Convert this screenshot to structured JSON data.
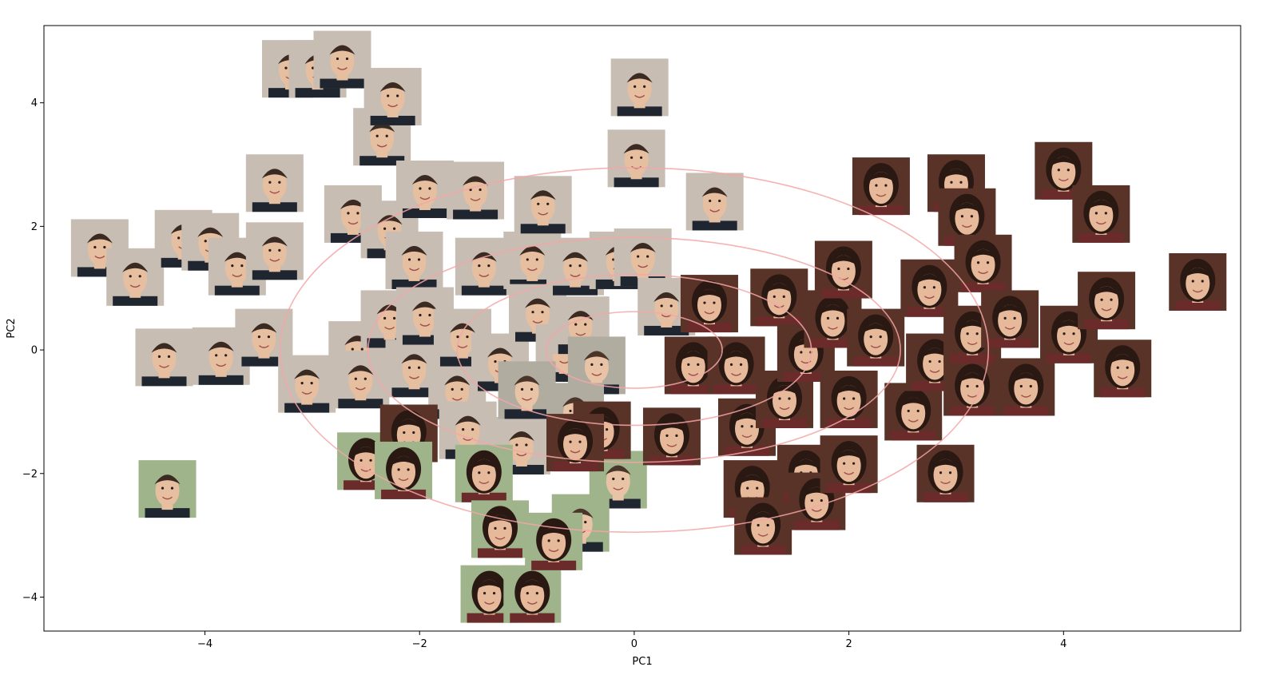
{
  "chart_data": {
    "type": "scatter",
    "title": "",
    "xlabel": "PC1",
    "ylabel": "PC2",
    "xlim": [
      -5.5,
      5.65
    ],
    "ylim": [
      -4.55,
      5.25
    ],
    "x_ticks": [
      -4,
      -2,
      0,
      2,
      4
    ],
    "y_ticks": [
      -4,
      -2,
      0,
      2,
      4
    ],
    "x_tick_labels": [
      "−4",
      "−2",
      "0",
      "2",
      "4"
    ],
    "y_tick_labels": [
      "−4",
      "−2",
      "0",
      "2",
      "4"
    ],
    "grid": false,
    "marker": "face-thumbnail",
    "confidence_ellipses": {
      "center": [
        0,
        0
      ],
      "radii": [
        [
          0.82,
          0.62
        ],
        [
          1.65,
          1.22
        ],
        [
          2.48,
          1.82
        ],
        [
          3.3,
          2.95
        ]
      ],
      "color": "#f4a6a6"
    },
    "points": [
      {
        "x": -4.98,
        "y": 1.65,
        "group": "m"
      },
      {
        "x": -4.65,
        "y": 1.18,
        "group": "m"
      },
      {
        "x": -4.35,
        "y": -2.25,
        "group": "m"
      },
      {
        "x": -4.38,
        "y": -0.12,
        "group": "m"
      },
      {
        "x": -4.2,
        "y": 1.8,
        "group": "m"
      },
      {
        "x": -3.95,
        "y": 1.75,
        "group": "m"
      },
      {
        "x": -3.85,
        "y": -0.1,
        "group": "m"
      },
      {
        "x": -3.7,
        "y": 1.35,
        "group": "m"
      },
      {
        "x": -3.45,
        "y": 0.2,
        "group": "m"
      },
      {
        "x": -3.35,
        "y": 1.6,
        "group": "m"
      },
      {
        "x": -3.35,
        "y": 2.7,
        "group": "m"
      },
      {
        "x": -3.2,
        "y": 4.55,
        "group": "m"
      },
      {
        "x": -3.05,
        "y": -0.55,
        "group": "m"
      },
      {
        "x": -2.95,
        "y": 4.55,
        "group": "m"
      },
      {
        "x": -2.72,
        "y": 4.7,
        "group": "m"
      },
      {
        "x": -2.62,
        "y": 2.2,
        "group": "m"
      },
      {
        "x": -2.58,
        "y": 0.0,
        "group": "m"
      },
      {
        "x": -2.55,
        "y": -0.48,
        "group": "m"
      },
      {
        "x": -2.35,
        "y": 3.45,
        "group": "m"
      },
      {
        "x": -2.28,
        "y": 1.95,
        "group": "m"
      },
      {
        "x": -2.28,
        "y": 0.5,
        "group": "m"
      },
      {
        "x": -2.25,
        "y": 4.1,
        "group": "m"
      },
      {
        "x": -2.05,
        "y": 1.45,
        "group": "m"
      },
      {
        "x": -2.05,
        "y": -0.3,
        "group": "m"
      },
      {
        "x": -1.95,
        "y": 0.55,
        "group": "m"
      },
      {
        "x": -1.95,
        "y": 2.6,
        "group": "m"
      },
      {
        "x": -1.65,
        "y": -0.65,
        "group": "m"
      },
      {
        "x": -1.6,
        "y": 0.2,
        "group": "m"
      },
      {
        "x": -1.55,
        "y": -1.3,
        "group": "m"
      },
      {
        "x": -1.48,
        "y": 2.58,
        "group": "m"
      },
      {
        "x": -1.4,
        "y": 1.35,
        "group": "m"
      },
      {
        "x": -1.25,
        "y": -0.2,
        "group": "m"
      },
      {
        "x": -1.05,
        "y": -1.55,
        "group": "m"
      },
      {
        "x": -0.95,
        "y": 1.45,
        "group": "m"
      },
      {
        "x": -0.9,
        "y": 0.6,
        "group": "m"
      },
      {
        "x": -0.85,
        "y": 2.35,
        "group": "m"
      },
      {
        "x": -0.65,
        "y": -0.05,
        "group": "m"
      },
      {
        "x": -0.55,
        "y": 1.35,
        "group": "m"
      },
      {
        "x": -0.5,
        "y": 0.4,
        "group": "m"
      },
      {
        "x": -0.15,
        "y": 1.45,
        "group": "m"
      },
      {
        "x": 0.02,
        "y": 3.1,
        "group": "m"
      },
      {
        "x": 0.05,
        "y": 4.25,
        "group": "m"
      },
      {
        "x": 0.08,
        "y": 1.5,
        "group": "m"
      },
      {
        "x": 0.3,
        "y": 0.7,
        "group": "m"
      },
      {
        "x": 0.75,
        "y": 2.4,
        "group": "m"
      },
      {
        "x": -1.0,
        "y": -0.65,
        "group": "n"
      },
      {
        "x": -0.35,
        "y": -0.25,
        "group": "n"
      },
      {
        "x": -0.55,
        "y": -1.0,
        "group": "n"
      },
      {
        "x": -0.15,
        "y": -2.1,
        "group": "n"
      },
      {
        "x": -0.5,
        "y": -2.8,
        "group": "n"
      },
      {
        "x": -1.4,
        "y": -2.0,
        "group": "f"
      },
      {
        "x": -1.25,
        "y": -2.9,
        "group": "f"
      },
      {
        "x": -1.35,
        "y": -3.95,
        "group": "f"
      },
      {
        "x": -0.95,
        "y": -3.95,
        "group": "f"
      },
      {
        "x": -0.75,
        "y": -3.1,
        "group": "f"
      },
      {
        "x": -2.5,
        "y": -1.8,
        "group": "f"
      },
      {
        "x": -2.1,
        "y": -1.35,
        "group": "f"
      },
      {
        "x": -2.15,
        "y": -1.95,
        "group": "f"
      },
      {
        "x": -0.3,
        "y": -1.3,
        "group": "f"
      },
      {
        "x": -0.55,
        "y": -1.5,
        "group": "f"
      },
      {
        "x": 0.55,
        "y": -0.25,
        "group": "f"
      },
      {
        "x": 0.7,
        "y": 0.75,
        "group": "f"
      },
      {
        "x": 0.35,
        "y": -1.4,
        "group": "f"
      },
      {
        "x": 0.95,
        "y": -0.25,
        "group": "f"
      },
      {
        "x": 1.05,
        "y": -1.25,
        "group": "f"
      },
      {
        "x": 1.1,
        "y": -2.25,
        "group": "f"
      },
      {
        "x": 1.2,
        "y": -2.85,
        "group": "f"
      },
      {
        "x": 1.4,
        "y": -0.8,
        "group": "f"
      },
      {
        "x": 1.35,
        "y": 0.85,
        "group": "f"
      },
      {
        "x": 1.6,
        "y": -0.05,
        "group": "f"
      },
      {
        "x": 1.6,
        "y": -2.0,
        "group": "f"
      },
      {
        "x": 1.7,
        "y": -2.45,
        "group": "f"
      },
      {
        "x": 1.85,
        "y": 0.5,
        "group": "f"
      },
      {
        "x": 1.95,
        "y": 1.3,
        "group": "f"
      },
      {
        "x": 2.0,
        "y": -0.8,
        "group": "f"
      },
      {
        "x": 2.0,
        "y": -1.85,
        "group": "f"
      },
      {
        "x": 2.25,
        "y": 0.2,
        "group": "f"
      },
      {
        "x": 2.3,
        "y": 2.65,
        "group": "f"
      },
      {
        "x": 2.6,
        "y": -1.0,
        "group": "f"
      },
      {
        "x": 2.75,
        "y": 1.0,
        "group": "f"
      },
      {
        "x": 2.8,
        "y": -0.2,
        "group": "f"
      },
      {
        "x": 2.9,
        "y": -2.0,
        "group": "f"
      },
      {
        "x": 3.0,
        "y": 2.7,
        "group": "f"
      },
      {
        "x": 3.1,
        "y": 2.15,
        "group": "f"
      },
      {
        "x": 3.25,
        "y": 1.4,
        "group": "f"
      },
      {
        "x": 3.15,
        "y": -0.6,
        "group": "f"
      },
      {
        "x": 3.15,
        "y": 0.25,
        "group": "f"
      },
      {
        "x": 3.5,
        "y": 0.5,
        "group": "f"
      },
      {
        "x": 3.65,
        "y": -0.6,
        "group": "f"
      },
      {
        "x": 4.0,
        "y": 2.9,
        "group": "f"
      },
      {
        "x": 4.05,
        "y": 0.25,
        "group": "f"
      },
      {
        "x": 4.35,
        "y": 2.2,
        "group": "f"
      },
      {
        "x": 4.4,
        "y": 0.8,
        "group": "f"
      },
      {
        "x": 4.55,
        "y": -0.3,
        "group": "f"
      },
      {
        "x": 5.25,
        "y": 1.1,
        "group": "f"
      }
    ]
  },
  "colors": {
    "ellipse": "#f4a6a6",
    "face_male_bg": "#c7bdb3",
    "face_neutral_bg": "#b0aca0",
    "face_female_bg": "#5a3328",
    "outdoor_bg": "#9fb48a"
  }
}
